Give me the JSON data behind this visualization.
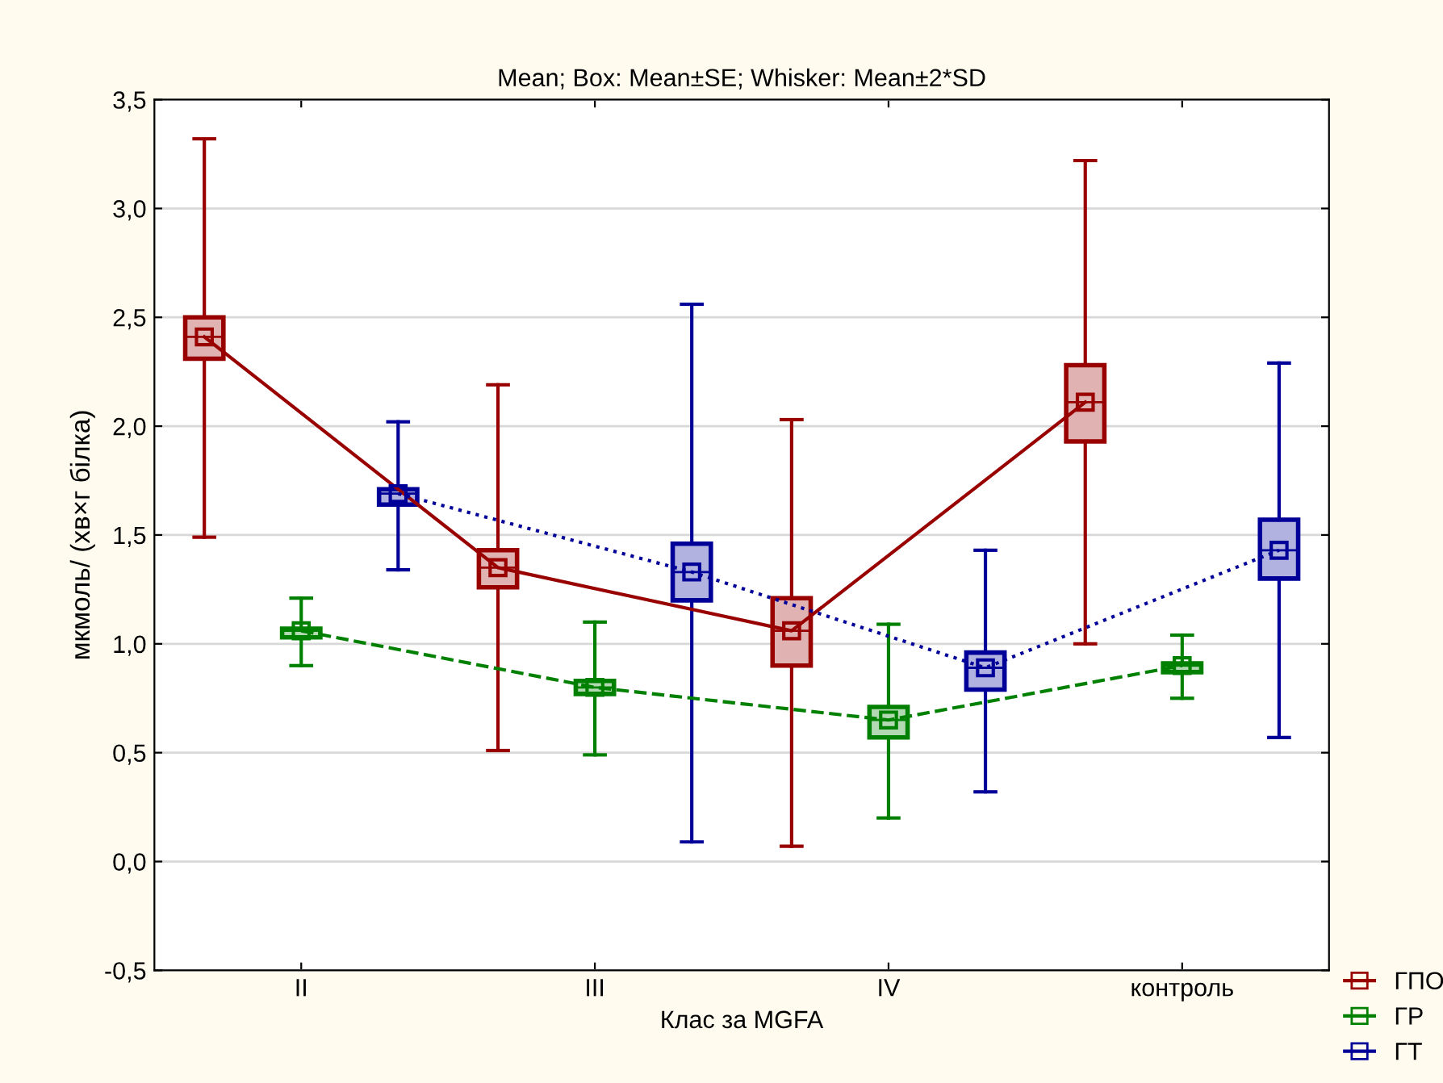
{
  "chart_data": {
    "type": "box",
    "title": "Mean; Box: Mean±SE; Whisker: Mean±2*SD",
    "xlabel": "Клас за MGFA",
    "ylabel": "мкмоль/ (хв×г білка)",
    "categories": [
      "II",
      "III",
      "IV",
      "контроль"
    ],
    "ylim": [
      -0.5,
      3.5
    ],
    "yticks": [
      {
        "value": -0.5,
        "label": "-0,5"
      },
      {
        "value": 0,
        "label": "0,0"
      },
      {
        "value": 0.5,
        "label": "0,5"
      },
      {
        "value": 1,
        "label": "1,0"
      },
      {
        "value": 1.5,
        "label": "1,5"
      },
      {
        "value": 2,
        "label": "2,0"
      },
      {
        "value": 2.5,
        "label": "2,5"
      },
      {
        "value": 3,
        "label": "3,0"
      },
      {
        "value": 3.5,
        "label": "3,5"
      }
    ],
    "grid": "y",
    "legend": "bottom right",
    "marker": "square",
    "series": [
      {
        "color": "#990000",
        "boxes": [
          {
            "low": 1.49,
            "q1": 2.31,
            "median": 2.41,
            "q3": 2.5,
            "high": 3.32
          },
          {
            "low": 0.51,
            "q1": 1.26,
            "median": 1.35,
            "q3": 1.43,
            "high": 2.19
          },
          {
            "low": 0.07,
            "q1": 0.9,
            "median": 1.06,
            "q3": 1.21,
            "high": 2.03
          },
          {
            "low": 1.0,
            "q1": 1.93,
            "median": 2.11,
            "q3": 2.28,
            "high": 3.22
          }
        ]
      },
      {
        "color": "#008000",
        "boxes": [
          {
            "low": 0.9,
            "q1": 1.03,
            "median": 1.06,
            "q3": 1.07,
            "high": 1.21
          },
          {
            "low": 0.49,
            "q1": 0.77,
            "median": 0.8,
            "q3": 0.83,
            "high": 1.1
          },
          {
            "low": 0.2,
            "q1": 0.57,
            "median": 0.65,
            "q3": 0.71,
            "high": 1.09
          },
          {
            "low": 0.75,
            "q1": 0.87,
            "median": 0.9,
            "q3": 0.91,
            "high": 1.04
          }
        ]
      },
      {
        "color": "#000099",
        "boxes": [
          {
            "low": 1.34,
            "q1": 1.64,
            "median": 1.69,
            "q3": 1.71,
            "high": 2.02
          },
          {
            "low": 0.09,
            "q1": 1.2,
            "median": 1.33,
            "q3": 1.46,
            "high": 2.56
          },
          {
            "low": 0.32,
            "q1": 0.79,
            "median": 0.89,
            "q3": 0.96,
            "high": 1.43
          },
          {
            "low": 0.57,
            "q1": 1.3,
            "median": 1.43,
            "q3": 1.57,
            "high": 2.29
          }
        ]
      },
      {
        "name": "ГПО",
        "type": "line",
        "color": "#990000",
        "line_style": "solid",
        "values": [
          2.41,
          1.35,
          1.06,
          2.11
        ]
      },
      {
        "name": "ГР",
        "type": "line",
        "color": "#008000",
        "line_style": "dashed",
        "values": [
          1.06,
          0.8,
          0.65,
          0.9
        ]
      },
      {
        "name": "ГТ",
        "type": "line",
        "color": "#000099",
        "line_style": "dotted",
        "values": [
          1.69,
          1.33,
          0.89,
          1.43
        ]
      }
    ]
  }
}
